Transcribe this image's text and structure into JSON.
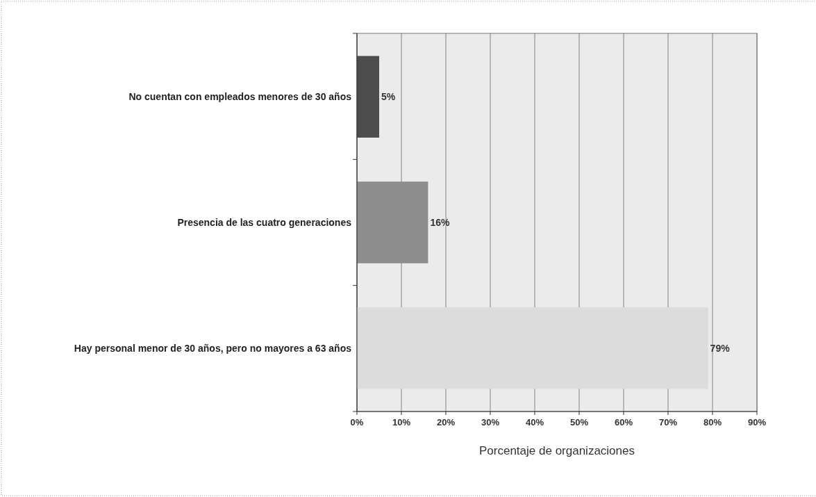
{
  "chart_data": {
    "type": "bar",
    "orientation": "horizontal",
    "xlabel": "Porcentaje de organizaciones",
    "categories": [
      "No cuentan con empleados menores de 30 años",
      "Presencia de las cuatro generaciones",
      "Hay personal menor de 30 años, pero no mayores a 63 años"
    ],
    "values": [
      5,
      16,
      79
    ],
    "value_labels": [
      "5%",
      "16%",
      "79%"
    ],
    "colors": [
      "#4d4d4d",
      "#8e8e8e",
      "#dcdcdc"
    ],
    "xlim": [
      0,
      90
    ],
    "xticks": [
      {
        "value": 0,
        "label": "0%"
      },
      {
        "value": 10,
        "label": "10%"
      },
      {
        "value": 20,
        "label": "20%"
      },
      {
        "value": 30,
        "label": "30%"
      },
      {
        "value": 40,
        "label": "40%"
      },
      {
        "value": 50,
        "label": "50%"
      },
      {
        "value": 60,
        "label": "60%"
      },
      {
        "value": 70,
        "label": "70%"
      },
      {
        "value": 80,
        "label": "80%"
      },
      {
        "value": 90,
        "label": "90%"
      }
    ],
    "grid": "x"
  }
}
